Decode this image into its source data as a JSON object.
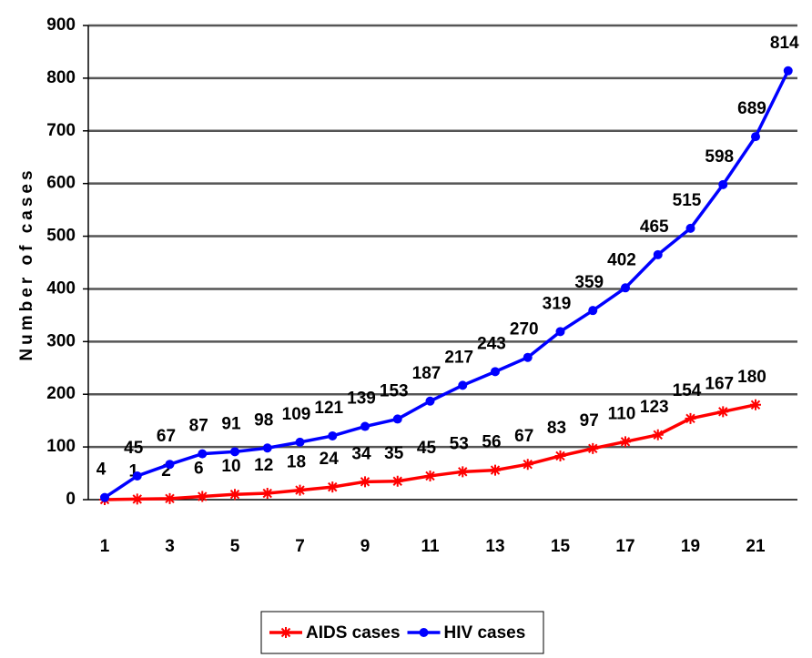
{
  "chart_data": {
    "type": "line",
    "y_label": "Number of cases",
    "categories": [
      1,
      null,
      3,
      null,
      5,
      null,
      7,
      null,
      9,
      null,
      11,
      null,
      13,
      null,
      15,
      null,
      17,
      null,
      19,
      null,
      21,
      null
    ],
    "series": [
      {
        "name": "AIDS cases",
        "color": "#ff0000",
        "marker": "star",
        "values": [
          0,
          1,
          2,
          6,
          10,
          12,
          18,
          24,
          34,
          35,
          45,
          53,
          56,
          67,
          83,
          97,
          110,
          123,
          154,
          167,
          180,
          null
        ],
        "value_labels": [
          null,
          "1",
          "2",
          "6",
          "10",
          "12",
          "18",
          "24",
          "34",
          "35",
          "45",
          "53",
          "56",
          "67",
          "83",
          "97",
          "110",
          "123",
          "154",
          "167",
          "180",
          null
        ]
      },
      {
        "name": "HIV cases",
        "color": "#0000ff",
        "marker": "circle",
        "values": [
          4,
          45,
          67,
          87,
          91,
          98,
          109,
          121,
          139,
          153,
          187,
          217,
          243,
          270,
          319,
          359,
          402,
          465,
          515,
          598,
          689,
          814
        ]
      }
    ],
    "ylim": [
      0,
      900
    ],
    "yticks": [
      0,
      100,
      200,
      300,
      400,
      500,
      600,
      700,
      800,
      900
    ],
    "grid": true
  }
}
